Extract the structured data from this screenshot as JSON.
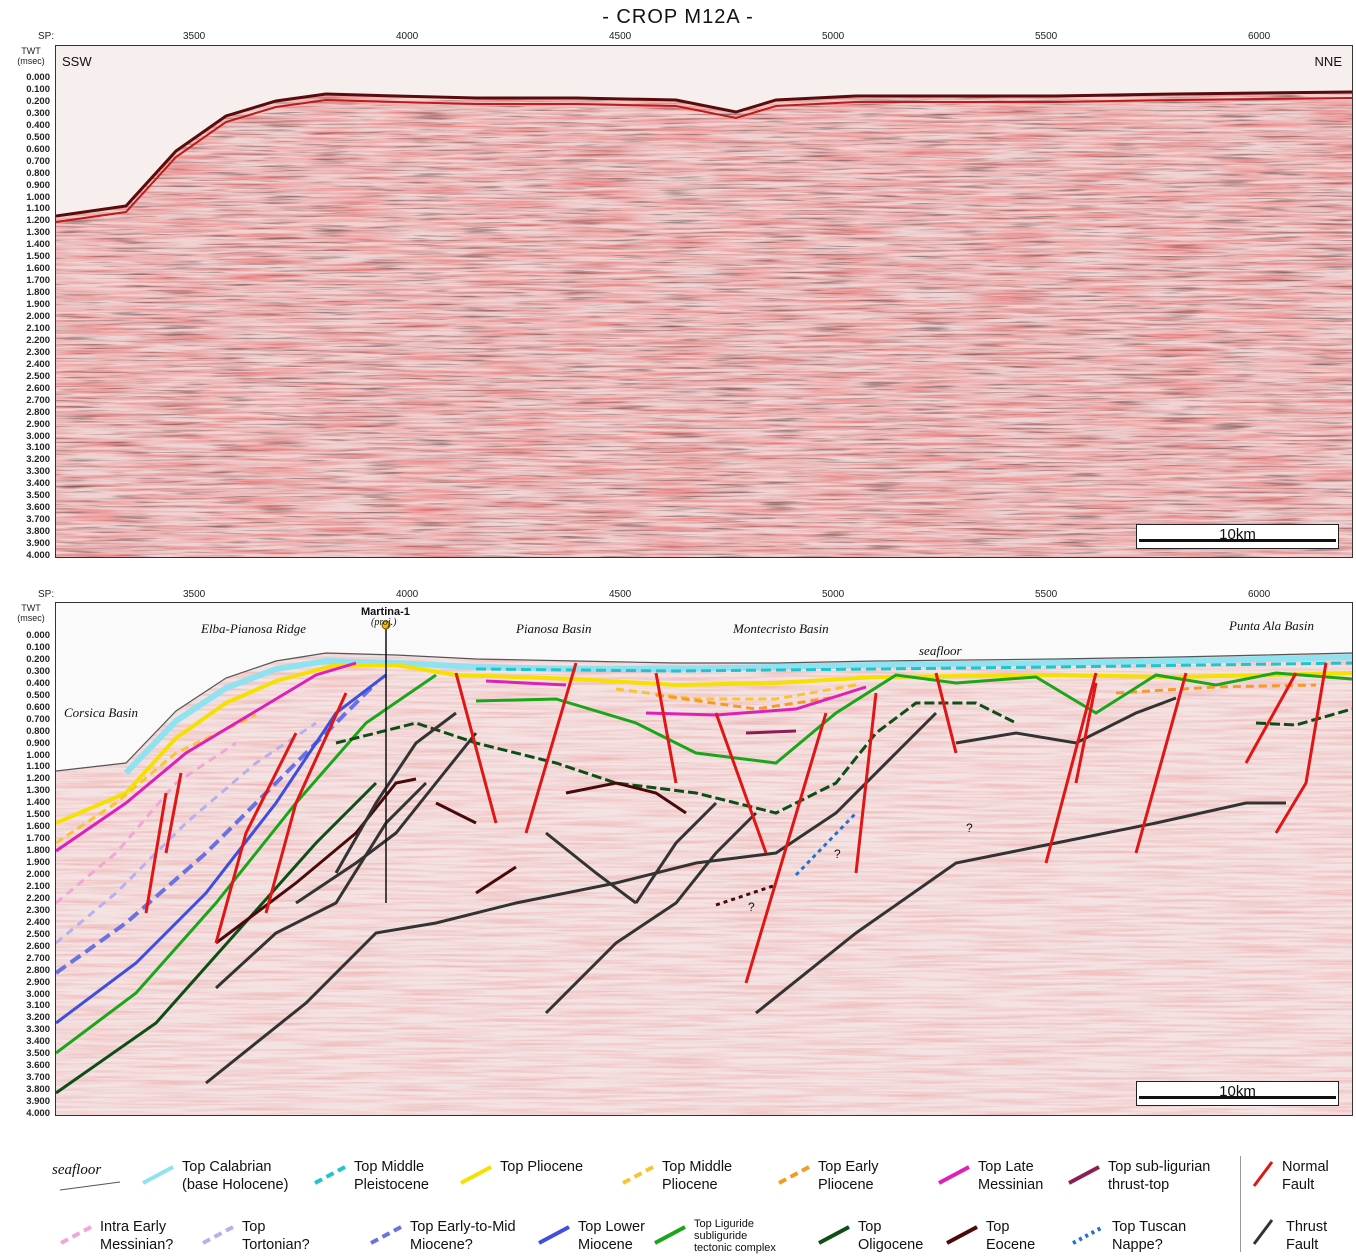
{
  "title": "- CROP M12A -",
  "sp_label": "SP:",
  "twt_label": "TWT",
  "twt_unit": "(msec)",
  "sp_ticks": [
    "3500",
    "4000",
    "4500",
    "5000",
    "5500",
    "6000"
  ],
  "twt_ticks": [
    "0.000",
    "0.100",
    "0.200",
    "0.300",
    "0.400",
    "0.500",
    "0.600",
    "0.700",
    "0.800",
    "0.900",
    "1.000",
    "1.100",
    "1.200",
    "1.300",
    "1.400",
    "1.500",
    "1.600",
    "1.700",
    "1.800",
    "1.900",
    "2.000",
    "2.100",
    "2.200",
    "2.300",
    "2.400",
    "2.500",
    "2.600",
    "2.700",
    "2.800",
    "2.900",
    "3.000",
    "3.100",
    "3.200",
    "3.300",
    "3.400",
    "3.500",
    "3.600",
    "3.700",
    "3.800",
    "3.900",
    "4.000"
  ],
  "top_panel": {
    "left_direction": "SSW",
    "right_direction": "NNE",
    "scale": "10km"
  },
  "bottom_panel": {
    "scale": "10km",
    "well_name": "Martina-1",
    "well_note": "(proj.)",
    "labels": {
      "elba_ridge": "Elba-Pianosa Ridge",
      "pianosa_basin": "Pianosa Basin",
      "montecristo_basin": "Montecristo Basin",
      "punta_ala_basin": "Punta Ala Basin",
      "seafloor": "seafloor",
      "corsica_basin": "Corsica Basin"
    },
    "question_mark": "?"
  },
  "legend": {
    "seafloor": "seafloor",
    "items_row1": [
      {
        "l1": "Top Calabrian",
        "l2": "(base Holocene)",
        "color": "#8fe3f0",
        "style": "solid"
      },
      {
        "l1": "Top Middle",
        "l2": "Pleistocene",
        "color": "#22c3cc",
        "style": "dashed"
      },
      {
        "l1": "Top Pliocene",
        "l2": "",
        "color": "#f5e000",
        "style": "solid"
      },
      {
        "l1": "Top Middle",
        "l2": "Pliocene",
        "color": "#f7c531",
        "style": "dashed"
      },
      {
        "l1": "Top Early",
        "l2": "Pliocene",
        "color": "#f59a22",
        "style": "dashed"
      },
      {
        "l1": "Top Late",
        "l2": "Messinian",
        "color": "#e01fb8",
        "style": "solid"
      },
      {
        "l1": "Top sub-ligurian",
        "l2": "thrust-top",
        "color": "#8a1e55",
        "style": "solid"
      }
    ],
    "items_row2": [
      {
        "l1": "Intra Early",
        "l2": "Messinian?",
        "color": "#f2a6d8",
        "style": "dashed"
      },
      {
        "l1": "Top",
        "l2": "Tortonian?",
        "color": "#b7b0ec",
        "style": "dashed"
      },
      {
        "l1": "Top Early-to-Mid",
        "l2": "Miocene?",
        "color": "#6a72e0",
        "style": "dashed"
      },
      {
        "l1": "Top Lower",
        "l2": "Miocene",
        "color": "#3e4fe0",
        "style": "solid"
      },
      {
        "l1": "Top Liguride",
        "l2": "subliguride",
        "l3": "tectonic complex",
        "color": "#1aa61a",
        "style": "solid"
      },
      {
        "l1": "Top",
        "l2": "Oligocene",
        "color": "#0d4d16",
        "style": "solid"
      },
      {
        "l1": "Top",
        "l2": "Eocene",
        "color": "#4a0a0a",
        "style": "solid"
      },
      {
        "l1": "Top Tuscan",
        "l2": "Nappe?",
        "color": "#1f6fd6",
        "style": "dotted"
      }
    ],
    "normal_fault": {
      "l1": "Normal",
      "l2": "Fault",
      "color": "#e01515"
    },
    "thrust_fault": {
      "l1": "Thrust",
      "l2": "Fault",
      "color": "#333333"
    }
  }
}
